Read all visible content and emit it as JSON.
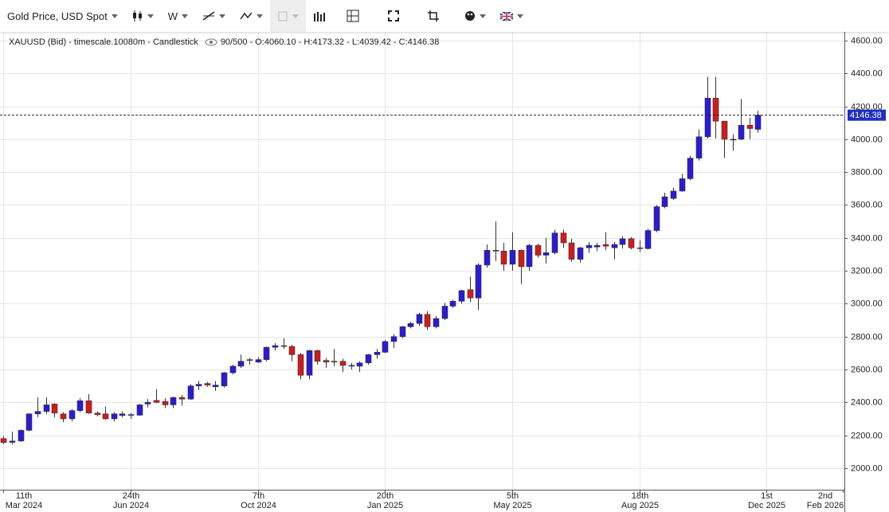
{
  "chart_data": {
    "type": "candlestick",
    "toolbar_title": "Gold Price, USD Spot",
    "interval": "W",
    "legend_text": "XAUUSD (Bid) - timescale.10080m - Candlestick",
    "stats_text": "90/500 - O:4060.10 - H:4173.32 - L:4039.42 - C:4146.38",
    "up_color": "#2a1bd4",
    "down_color": "#d01b1b",
    "grid": true,
    "open": [
      2180,
      2157,
      2165,
      2230,
      2330,
      2345,
      2390,
      2330,
      2300,
      2350,
      2410,
      2335,
      2330,
      2300,
      2320,
      2322,
      2322,
      2390,
      2412,
      2405,
      2385,
      2430,
      2420,
      2500,
      2515,
      2495,
      2500,
      2580,
      2620,
      2660,
      2645,
      2660,
      2735,
      2745,
      2740,
      2690,
      2565,
      2715,
      2655,
      2650,
      2650,
      2620,
      2620,
      2640,
      2690,
      2705,
      2770,
      2800,
      2860,
      2880,
      2935,
      2860,
      2910,
      2985,
      3015,
      3085,
      3035,
      3235,
      3325,
      3320,
      3240,
      3325,
      3225,
      3355,
      3295,
      3310,
      3430,
      3370,
      3270,
      3340,
      3345,
      3360,
      3340,
      3360,
      3395,
      3340,
      3335,
      3445,
      3590,
      3640,
      3685,
      3760,
      3885,
      4015,
      4250,
      4110,
      3995,
      4000,
      4085,
      4060.1
    ],
    "high": [
      2195,
      2222,
      2235,
      2335,
      2430,
      2430,
      2395,
      2340,
      2360,
      2425,
      2450,
      2345,
      2375,
      2340,
      2345,
      2335,
      2390,
      2420,
      2480,
      2425,
      2435,
      2445,
      2510,
      2530,
      2525,
      2530,
      2585,
      2630,
      2690,
      2670,
      2675,
      2740,
      2760,
      2790,
      2750,
      2700,
      2720,
      2720,
      2670,
      2725,
      2665,
      2640,
      2650,
      2695,
      2725,
      2780,
      2815,
      2865,
      2890,
      2945,
      2955,
      2925,
      3005,
      3025,
      3085,
      3165,
      3245,
      3360,
      3500,
      3370,
      3435,
      3330,
      3365,
      3365,
      3400,
      3450,
      3450,
      3395,
      3345,
      3375,
      3370,
      3435,
      3375,
      3410,
      3405,
      3385,
      3455,
      3600,
      3675,
      3705,
      3790,
      3900,
      4060,
      4380,
      4380,
      4110,
      4030,
      4245,
      4130,
      4173.32
    ],
    "low": [
      2147,
      2146,
      2160,
      2225,
      2310,
      2330,
      2310,
      2280,
      2285,
      2340,
      2330,
      2315,
      2295,
      2285,
      2310,
      2300,
      2318,
      2370,
      2395,
      2365,
      2365,
      2380,
      2415,
      2475,
      2495,
      2470,
      2490,
      2570,
      2610,
      2630,
      2640,
      2650,
      2715,
      2725,
      2650,
      2540,
      2540,
      2630,
      2610,
      2620,
      2585,
      2600,
      2585,
      2630,
      2665,
      2700,
      2730,
      2790,
      2850,
      2865,
      2840,
      2850,
      2900,
      2975,
      3000,
      3010,
      2960,
      3220,
      3260,
      3200,
      3200,
      3120,
      3200,
      3280,
      3245,
      3300,
      3340,
      3255,
      3250,
      3310,
      3320,
      3325,
      3270,
      3335,
      3330,
      3315,
      3330,
      3435,
      3580,
      3630,
      3680,
      3750,
      3870,
      4005,
      4005,
      3886,
      3930,
      3995,
      4000,
      4039.42
    ],
    "close": [
      2156,
      2165,
      2230,
      2330,
      2345,
      2385,
      2335,
      2300,
      2350,
      2410,
      2335,
      2325,
      2300,
      2330,
      2330,
      2326,
      2385,
      2400,
      2400,
      2385,
      2430,
      2420,
      2500,
      2510,
      2505,
      2505,
      2580,
      2620,
      2650,
      2655,
      2660,
      2735,
      2745,
      2740,
      2690,
      2565,
      2715,
      2650,
      2645,
      2645,
      2625,
      2625,
      2640,
      2690,
      2705,
      2770,
      2800,
      2860,
      2880,
      2935,
      2860,
      2910,
      2985,
      3015,
      3080,
      3035,
      3235,
      3325,
      3320,
      3240,
      3325,
      3225,
      3355,
      3295,
      3310,
      3430,
      3370,
      3270,
      3340,
      3355,
      3355,
      3350,
      3360,
      3395,
      3340,
      3335,
      3445,
      3590,
      3650,
      3685,
      3760,
      3885,
      4015,
      4250,
      4110,
      4000,
      4000,
      4085,
      4065,
      4146.38
    ],
    "last_price": 4146.38,
    "xlim": [
      -0.42,
      99.2
    ],
    "xticks": [
      {
        "value": 0,
        "label": "11th\nMar 2024"
      },
      {
        "value": 15,
        "label": "24th\nJun 2024"
      },
      {
        "value": 30,
        "label": "7th\nOct 2024"
      },
      {
        "value": 45,
        "label": "20th\nJan 2025"
      },
      {
        "value": 60,
        "label": "5th\nMay 2025"
      },
      {
        "value": 75,
        "label": "18th\nAug 2025"
      },
      {
        "value": 90,
        "label": "1st\nDec 2025"
      },
      {
        "value": 99,
        "label": "2nd\nFeb 2026"
      }
    ],
    "ylim": [
      1869,
      4653
    ],
    "yticks": [
      {
        "value": 2000,
        "label": "2000.00"
      },
      {
        "value": 2200,
        "label": "2200.00"
      },
      {
        "value": 2400,
        "label": "2400.00"
      },
      {
        "value": 2600,
        "label": "2600.00"
      },
      {
        "value": 2800,
        "label": "2800.00"
      },
      {
        "value": 3000,
        "label": "3000.00"
      },
      {
        "value": 3200,
        "label": "3200.00"
      },
      {
        "value": 3400,
        "label": "3400.00"
      },
      {
        "value": 3600,
        "label": "3600.00"
      },
      {
        "value": 3800,
        "label": "3800.00"
      },
      {
        "value": 4000,
        "label": "4000.00"
      },
      {
        "value": 4200,
        "label": "4200.00"
      },
      {
        "value": 4400,
        "label": "4400.00"
      },
      {
        "value": 4600,
        "label": "4600.00"
      }
    ]
  }
}
